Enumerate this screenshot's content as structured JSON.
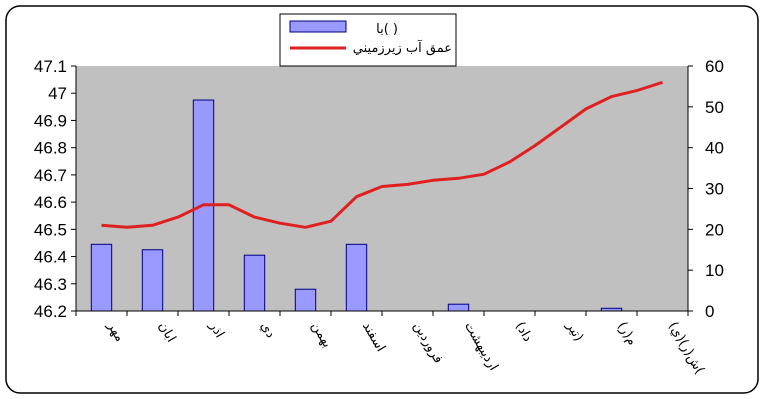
{
  "chart_data": {
    "type": "bar+line",
    "categories": [
      "مهر",
      "آبان",
      "آذر",
      "دي",
      "بهمن",
      "اسفند",
      "فروردين",
      "ارديبهشت",
      "خرداد",
      "تير",
      "مرداد",
      "شهريور"
    ],
    "category_labels_shown": [
      "مهر",
      "ابان",
      "اذر",
      "دي",
      "بهمن",
      "اسفند",
      "فروردين",
      "ارديبهشت",
      "(داد",
      "تير)",
      "م(ر)",
      "ش(ر)(ي)("
    ],
    "series": [
      {
        "name": "با( )",
        "kind": "bar",
        "axis": "left",
        "color": "#9999ff",
        "values": [
          46.445,
          46.425,
          46.975,
          46.405,
          46.28,
          46.445,
          46.2,
          46.225,
          46.2,
          46.2,
          46.21,
          46.2
        ]
      },
      {
        "name": "عمق آب زيرزميني",
        "kind": "line",
        "axis": "right",
        "color": "#e02020",
        "x": [
          0,
          0.5,
          1,
          1.5,
          2,
          2.5,
          3,
          3.5,
          4,
          4.5,
          5,
          5.5,
          6,
          6.5,
          7,
          7.5,
          8,
          8.5,
          9,
          9.5,
          10,
          10.5,
          11
        ],
        "values": [
          21,
          20.5,
          21,
          23,
          26,
          26,
          23,
          21.5,
          20.5,
          22,
          28,
          30.5,
          31,
          32,
          32.5,
          33.5,
          36.5,
          40.5,
          45,
          49.5,
          52.5,
          54,
          56
        ]
      }
    ],
    "yleft": {
      "ylim": [
        46.2,
        47.1
      ],
      "ticks": [
        "46.2",
        "46.3",
        "46.4",
        "46.5",
        "46.6",
        "46.7",
        "46.8",
        "46.9",
        "47",
        "47.1"
      ]
    },
    "yright": {
      "ylim": [
        0,
        60
      ],
      "ticks": [
        "0",
        "10",
        "20",
        "30",
        "40",
        "50",
        "60"
      ]
    },
    "legend": {
      "placement": "top-center"
    },
    "grid": false,
    "colors": {
      "plot_bg": "#c0c0c0",
      "bar_fill": "#9999ff",
      "bar_stroke": "#000080",
      "line": "#e02020"
    }
  }
}
